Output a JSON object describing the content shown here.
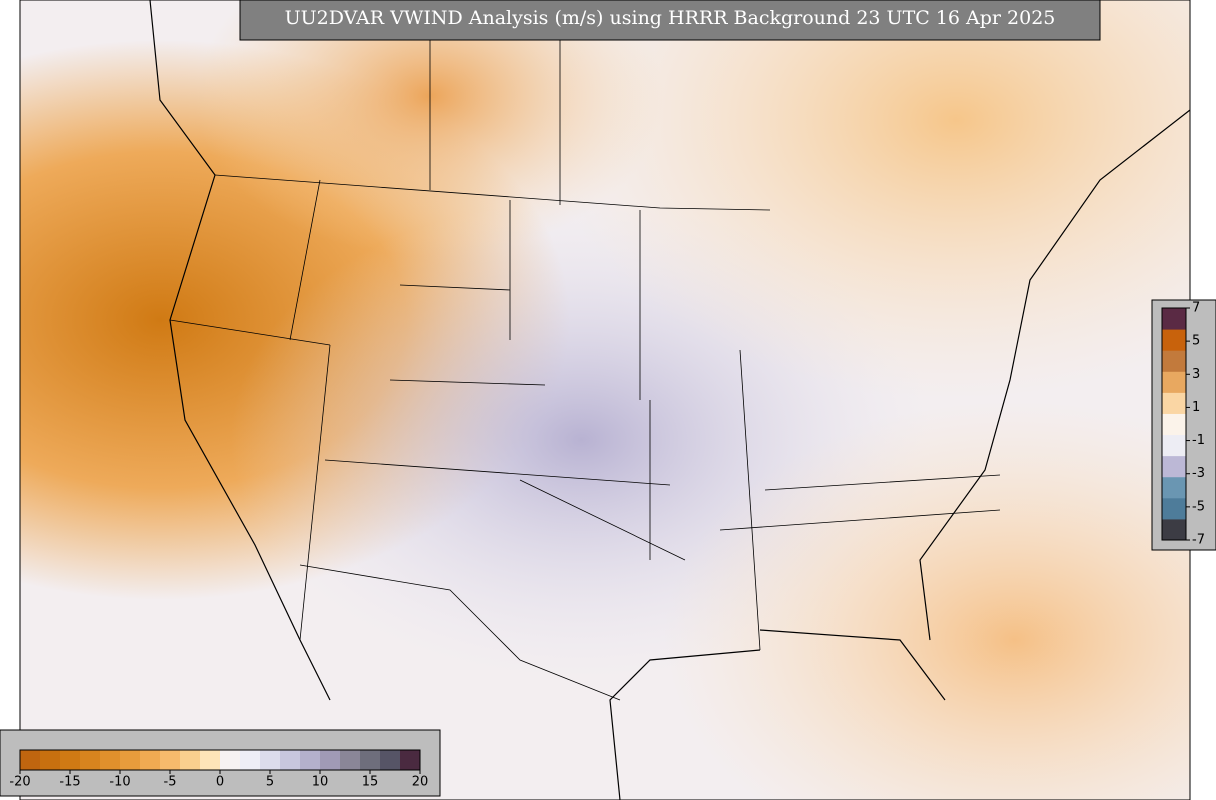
{
  "title": "UU2DVAR VWIND Analysis (m/s) using HRRR Background 23 UTC 16 Apr 2025",
  "colorbars": [
    {
      "lim": [
        -20,
        20
      ],
      "ticks": [
        -20,
        -15,
        -10,
        -5,
        0,
        5,
        10,
        15,
        20
      ],
      "colors": [
        "#c0650f",
        "#c8700f",
        "#d07a14",
        "#d8841e",
        "#e0902c",
        "#e89c3c",
        "#f0aa52",
        "#f6ba6c",
        "#fad08e",
        "#fde4b8",
        "#f6f3f2",
        "#eeeef6",
        "#dcdcec",
        "#c8c6de",
        "#b4b0cc",
        "#a09ab6",
        "#8a8698",
        "#6e6e7c",
        "#565466",
        "#4a2a40"
      ]
    },
    {
      "lim": [
        -7,
        7
      ],
      "ticks": [
        7,
        5,
        3,
        1,
        -1,
        -3,
        -5,
        -7
      ],
      "colors": [
        "#3c3c44",
        "#4e7c9a",
        "#6a96b2",
        "#bcb8d6",
        "#ededf4",
        "#fbf3ea",
        "#fad6a4",
        "#e8a860",
        "#c27a3c",
        "#c8620c",
        "#5a2a44"
      ]
    }
  ]
}
